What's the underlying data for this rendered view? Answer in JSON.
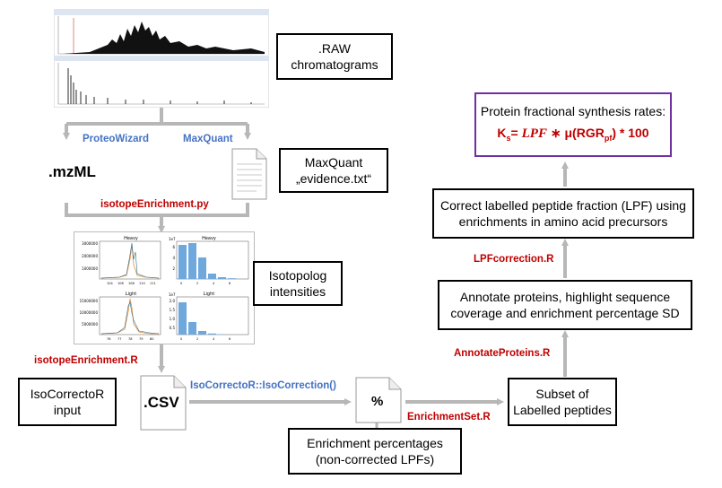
{
  "raw_box": {
    "line1": ".RAW",
    "line2": "chromatograms"
  },
  "tools": {
    "proteowizard": "ProteoWizard",
    "maxquant": "MaxQuant"
  },
  "files": {
    "mzml": ".mzML",
    "csv": ".CSV",
    "percent": "%"
  },
  "evidence_box": {
    "line1": "MaxQuant",
    "line2": "„evidence.txt“"
  },
  "scripts": {
    "isotope_py": "isotopeEnrichment.py",
    "isotope_r": "isotopeEnrichment.R",
    "isocorrector_fn": "IsoCorrectoR::IsoCorrection()",
    "enrichmentset_r": "EnrichmentSet.R",
    "annotate_r": "AnnotateProteins.R",
    "lpfcorrection_r": "LPFcorrection.R"
  },
  "isotopolog_box": {
    "line1": "Isotopolog",
    "line2": "intensities"
  },
  "isocorrector_box": {
    "line1": "IsoCorrectoR",
    "line2": "input"
  },
  "enrichment_box": {
    "line1": "Enrichment percentages",
    "line2": "(non-corrected LPFs)"
  },
  "subset_box": {
    "line1": "Subset of",
    "line2": "Labelled peptides"
  },
  "annotate_box": {
    "line1": "Annotate proteins, highlight sequence",
    "line2": "coverage and enrichment percentage SD"
  },
  "correct_box": {
    "line1": "Correct labelled peptide fraction (LPF) using",
    "line2": "enrichments in amino acid precursors"
  },
  "fsr_box": {
    "title": "Protein fractional synthesis rates:",
    "ks": "K",
    "ks_sub": "s",
    "eq": "= ",
    "lpf": "LPF",
    "times_mu": " ∗ μ(RGR",
    "pf_sub": "pf",
    "tail": ") * 100"
  },
  "plots": {
    "heavy": "Heavy",
    "light": "Light",
    "heavy_yticks": [
      "3000000",
      "2000000",
      "1000000"
    ],
    "light_yticks": [
      "15000000",
      "10000000",
      "5000000"
    ],
    "heavy_xticks": [
      "104",
      "106",
      "108",
      "110",
      "111"
    ],
    "light_xticks": [
      "76",
      "77",
      "78",
      "79",
      "80"
    ],
    "exp": "1e7",
    "bar_yticks_heavy": [
      "6",
      "4",
      "2"
    ],
    "bar_yticks_light": [
      "2.0",
      "1.5",
      "1.0",
      "0.5"
    ],
    "bar_xticks": [
      "0",
      "2",
      "4",
      "6"
    ],
    "heavy_bars": [
      0.95,
      1.0,
      0.6,
      0.15,
      0.05,
      0.02
    ],
    "light_bars": [
      0.9,
      0.35,
      0.1,
      0.03,
      0.01,
      0.0
    ]
  },
  "colors": {
    "arrow": "#b7b7b7",
    "red": "#c00000",
    "blue": "#4472c4",
    "purple": "#7030a0",
    "bar": "#6fa8dc"
  }
}
